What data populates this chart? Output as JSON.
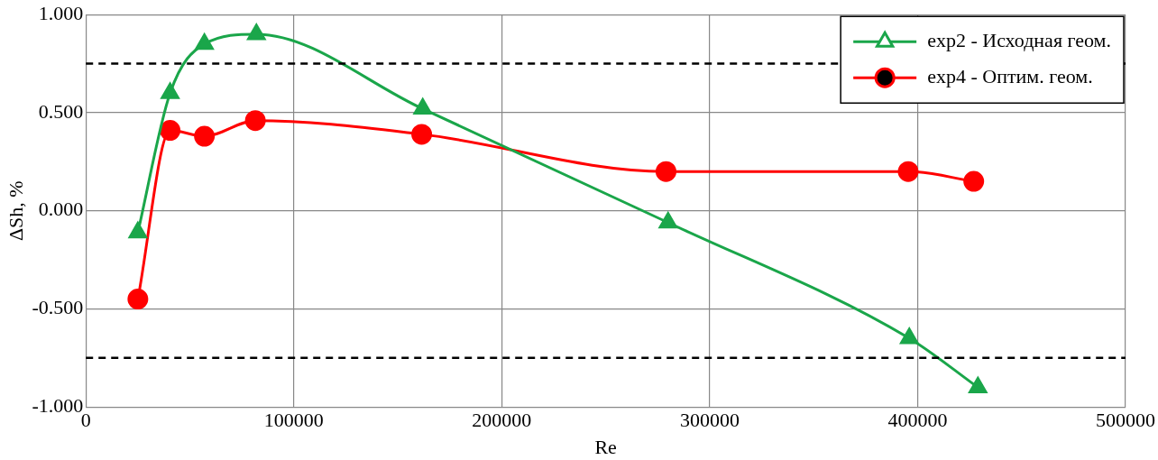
{
  "chart_data": {
    "type": "line",
    "xlabel": "Re",
    "ylabel": "ΔSh, %",
    "xlim": [
      0,
      500000
    ],
    "xticks": [
      0,
      100000,
      200000,
      300000,
      400000,
      500000
    ],
    "ylim": [
      -1,
      1
    ],
    "yticks": [
      {
        "value": -1,
        "label": "-1.000"
      },
      {
        "value": -0.5,
        "label": "-0.500"
      },
      {
        "value": 0,
        "label": "0.000"
      },
      {
        "value": 0.5,
        "label": "0.500"
      },
      {
        "value": 1,
        "label": "1.000"
      }
    ],
    "grid": true,
    "legend": "top right",
    "line_style": "solid",
    "series": [
      {
        "name": "exp2 - Исходная геом.",
        "color": "#1aa64a",
        "marker": "triangle",
        "x": [
          25000,
          40500,
          57000,
          82000,
          162000,
          280000,
          396000,
          429000
        ],
        "values": [
          -0.11,
          0.6,
          0.85,
          0.9,
          0.52,
          -0.06,
          -0.65,
          -0.9
        ]
      },
      {
        "name": "exp4 - Оптим. геом.",
        "color": "#ff0000",
        "marker": "circle",
        "x": [
          25000,
          40500,
          57000,
          81500,
          161500,
          279000,
          395500,
          427000
        ],
        "values": [
          -0.45,
          0.41,
          0.38,
          0.46,
          0.39,
          0.2,
          0.2,
          0.15
        ]
      }
    ],
    "ref_lines": [
      {
        "axis": "y",
        "value": 0.75,
        "color": "#000000",
        "line_style": "dashed"
      },
      {
        "axis": "y",
        "value": -0.75,
        "color": "#000000",
        "line_style": "dashed"
      }
    ]
  }
}
